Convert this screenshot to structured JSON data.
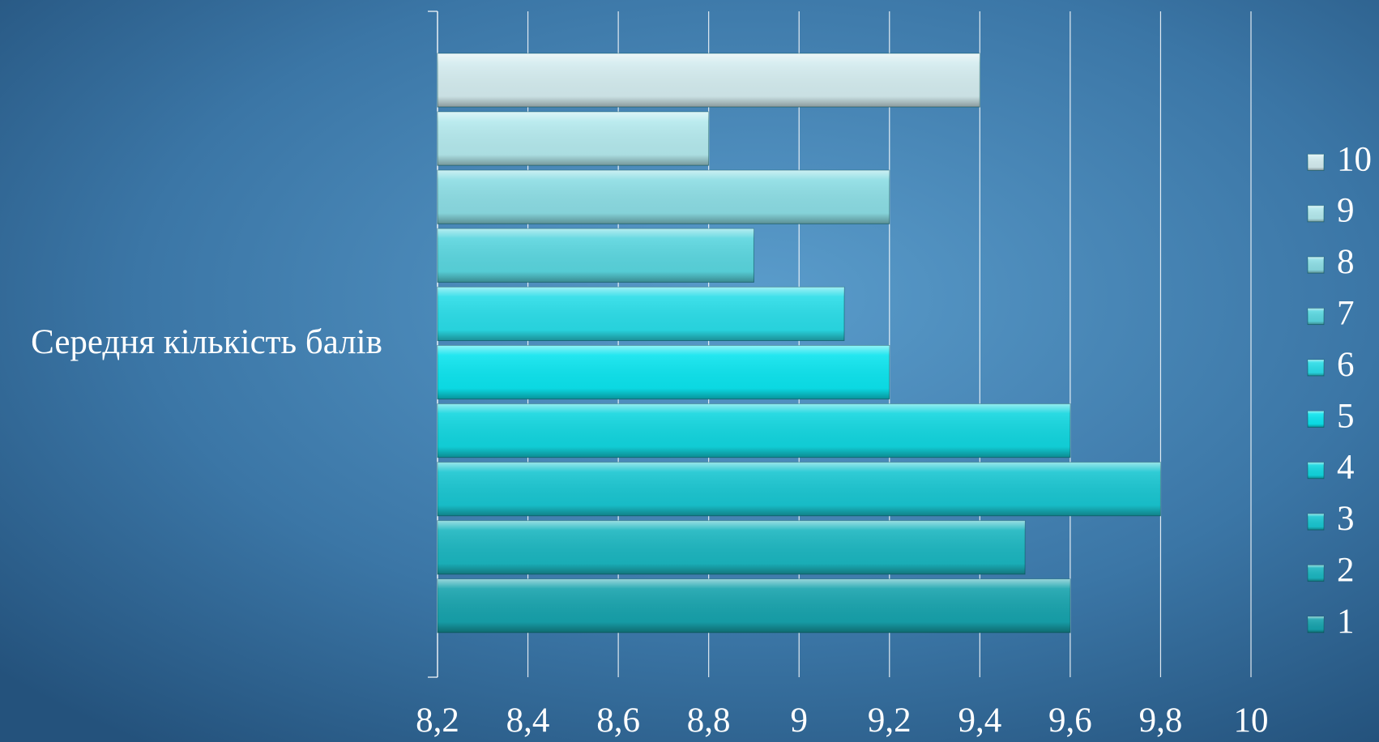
{
  "chart_data": {
    "type": "bar",
    "orientation": "horizontal",
    "categories": [
      "Середня кількість балів"
    ],
    "series": [
      {
        "name": "1",
        "color": "#17a3ad",
        "values": [
          9.6
        ]
      },
      {
        "name": "2",
        "color": "#1bb6c0",
        "values": [
          9.5
        ]
      },
      {
        "name": "3",
        "color": "#19c6d1",
        "values": [
          9.8
        ]
      },
      {
        "name": "4",
        "color": "#12d6df",
        "values": [
          9.6
        ]
      },
      {
        "name": "5",
        "color": "#0ce4ee",
        "values": [
          9.2
        ]
      },
      {
        "name": "6",
        "color": "#2adde8",
        "values": [
          9.1
        ]
      },
      {
        "name": "7",
        "color": "#5ad6df",
        "values": [
          8.9
        ]
      },
      {
        "name": "8",
        "color": "#8cdde4",
        "values": [
          9.2
        ]
      },
      {
        "name": "9",
        "color": "#b4e9ed",
        "values": [
          8.8
        ]
      },
      {
        "name": "10",
        "color": "#d4ecef",
        "values": [
          9.4
        ]
      }
    ],
    "xlim": [
      8.2,
      10
    ],
    "xticks": [
      {
        "value": 8.2,
        "label": "8,2"
      },
      {
        "value": 8.4,
        "label": "8,4"
      },
      {
        "value": 8.6,
        "label": "8,6"
      },
      {
        "value": 8.8,
        "label": "8,8"
      },
      9,
      {
        "value": 9.2,
        "label": "9,2"
      },
      {
        "value": 9.4,
        "label": "9,4"
      },
      {
        "value": 9.6,
        "label": "9,6"
      },
      {
        "value": 9.8,
        "label": "9,8"
      },
      10
    ],
    "grid": true,
    "legend": "right"
  }
}
